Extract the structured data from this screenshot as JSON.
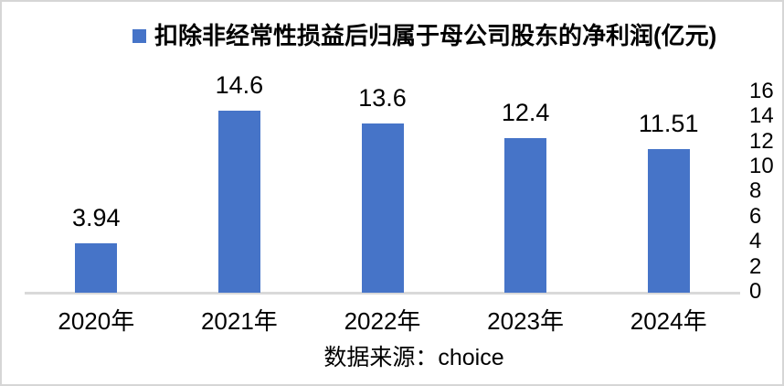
{
  "window": {
    "background": "#FFFFFF",
    "border_color": "#D6D6D6"
  },
  "legend": {
    "label": "扣除非经常性损益后归属于母公司股东的净利润(亿元)",
    "marker_color": "#4674C8"
  },
  "source": {
    "text": "数据来源：choice"
  },
  "colors": {
    "bar": "#4674C8",
    "axis_line": "#D9D9D9",
    "text": "#000000"
  },
  "chart_data": {
    "type": "bar",
    "title": "",
    "series_name": "扣除非经常性损益后归属于母公司股东的净利润(亿元)",
    "categories": [
      "2020年",
      "2021年",
      "2022年",
      "2023年",
      "2024年"
    ],
    "values": [
      3.94,
      14.6,
      13.6,
      12.4,
      11.51
    ],
    "value_labels": [
      "3.94",
      "14.6",
      "13.6",
      "12.4",
      "11.51"
    ],
    "xlabel": "",
    "ylabel": "",
    "ylim": [
      0,
      16
    ],
    "yticks": [
      0,
      2,
      4,
      6,
      8,
      10,
      12,
      14,
      16
    ],
    "yaxis_side": "right",
    "legend_position": "top",
    "grid": false,
    "data_labels": true,
    "source_note": "数据来源：choice"
  }
}
